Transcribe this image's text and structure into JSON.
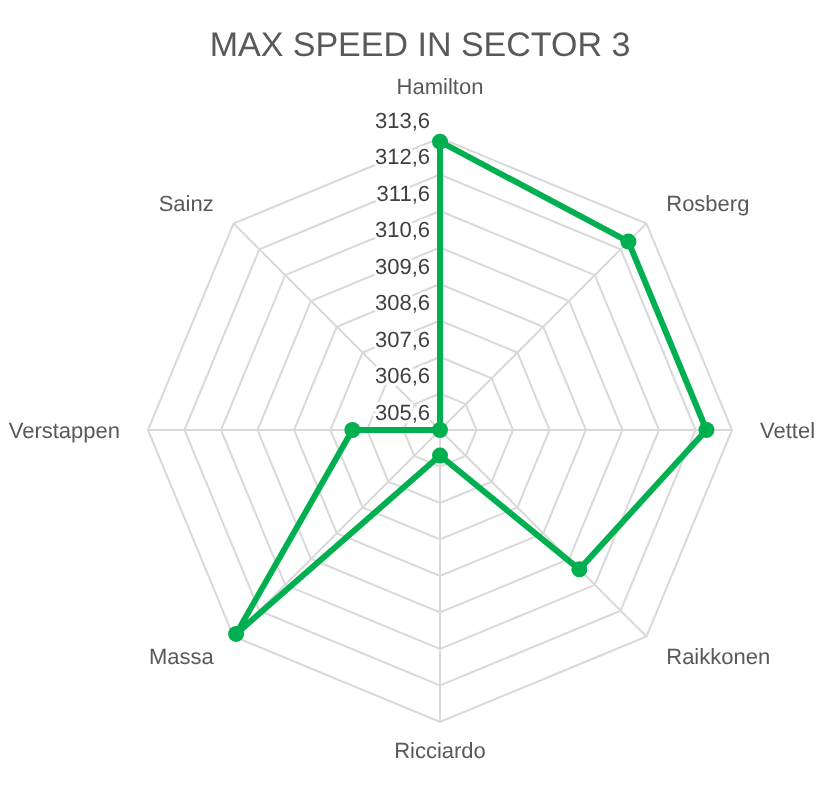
{
  "chart_data": {
    "type": "radar",
    "title": "MAX SPEED IN SECTOR 3",
    "categories": [
      "Hamilton",
      "Rosberg",
      "Vettel",
      "Raikkonen",
      "Ricciardo",
      "Massa",
      "Verstappen",
      "Sainz"
    ],
    "series": [
      {
        "color": "#00b050",
        "values": [
          313.5,
          312.9,
          312.9,
          311.0,
          306.3,
          313.5,
          308.0,
          305.6
        ]
      }
    ],
    "ylim": [
      305.6,
      313.6
    ],
    "yticks": [
      {
        "value": 305.6,
        "label": "305,6"
      },
      {
        "value": 306.6,
        "label": "306,6"
      },
      {
        "value": 307.6,
        "label": "307,6"
      },
      {
        "value": 308.6,
        "label": "308,6"
      },
      {
        "value": 309.6,
        "label": "309,6"
      },
      {
        "value": 310.6,
        "label": "310,6"
      },
      {
        "value": 311.6,
        "label": "311,6"
      },
      {
        "value": 312.6,
        "label": "312,6"
      },
      {
        "value": 313.6,
        "label": "313,6"
      }
    ],
    "grid": true,
    "marker": "circle"
  }
}
